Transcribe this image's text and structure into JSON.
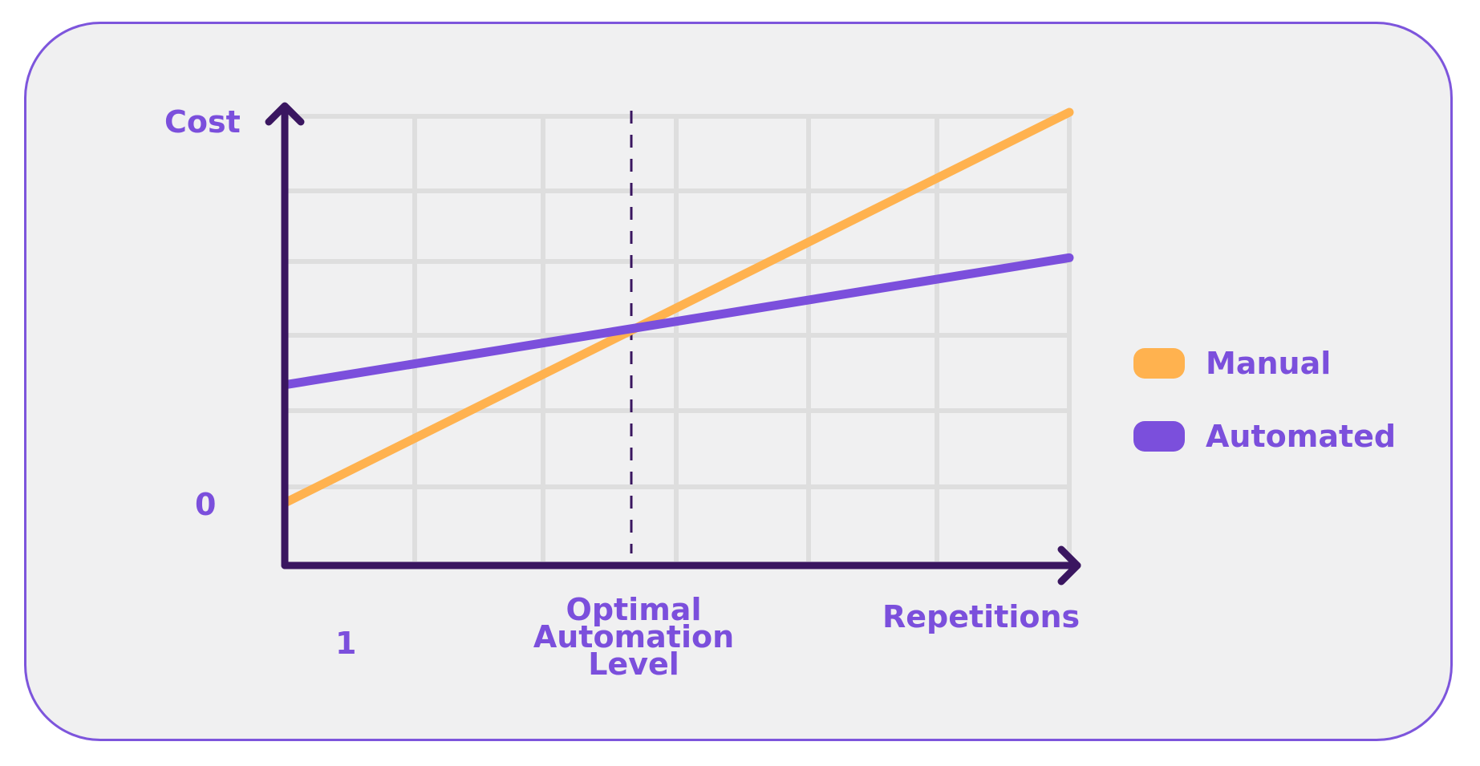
{
  "chart_data": {
    "type": "line",
    "ylabel": "Cost",
    "xlabel": "Repetitions",
    "y_zero_label": "0",
    "x_start_label": "1",
    "marker_label": "Optimal\nAutomation\nLevel",
    "marker_x": 0.44,
    "xlim": [
      0,
      1
    ],
    "ylim": [
      0,
      1
    ],
    "grid": true,
    "legend_position": "right",
    "series": [
      {
        "name": "Manual",
        "color": "#ffb24f",
        "x": [
          0,
          1
        ],
        "y": [
          0.17,
          1.0
        ]
      },
      {
        "name": "Automated",
        "color": "#7b4fdc",
        "x": [
          0,
          1
        ],
        "y": [
          0.42,
          0.69
        ]
      }
    ]
  },
  "colors": {
    "axis": "#3a1660",
    "grid": "#dedede",
    "accent": "#7b4fdc"
  }
}
